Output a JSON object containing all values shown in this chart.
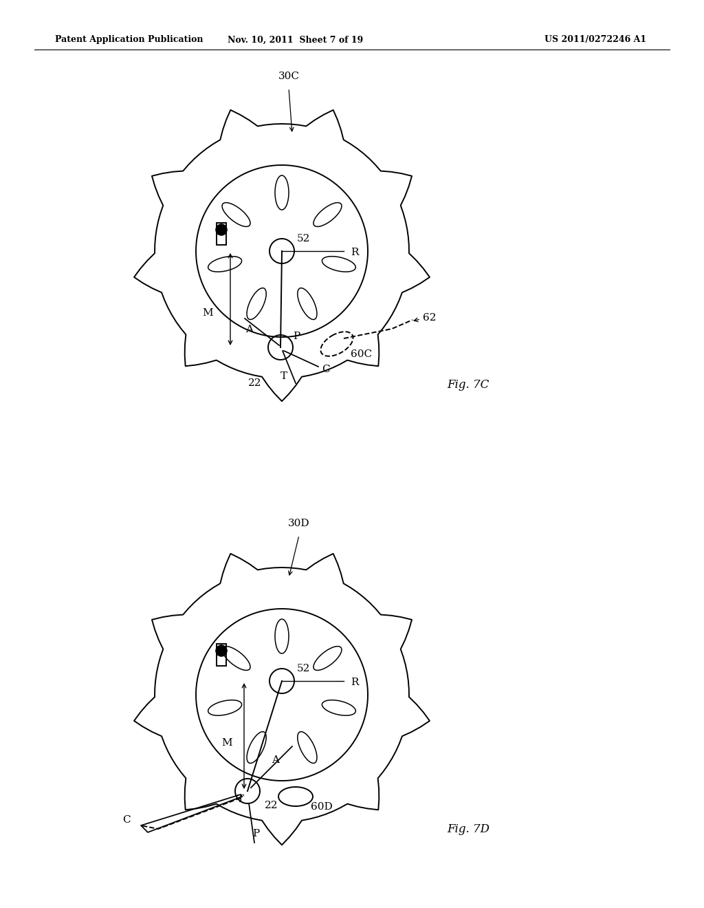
{
  "background": "#ffffff",
  "line_color": "#000000",
  "header_left": "Patent Application Publication",
  "header_mid": "Nov. 10, 2011  Sheet 7 of 19",
  "header_right": "US 2011/0272246 A1",
  "fig7c_label": "30C",
  "fig7d_label": "30D",
  "figC_caption": "Fig. 7C",
  "figD_caption": "Fig. 7D"
}
